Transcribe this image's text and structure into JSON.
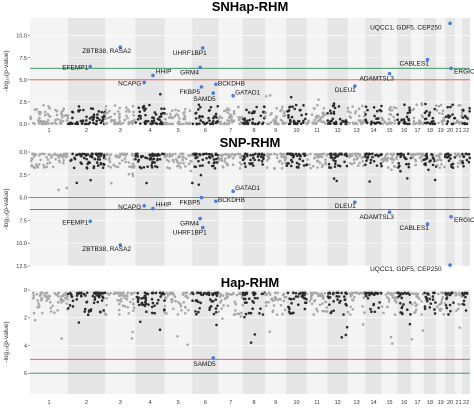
{
  "chart_data": [
    {
      "type": "scatter",
      "title": "SNHap-RHM",
      "ylabel": "-log₁₀(p-value)",
      "direction": "up",
      "ylim": [
        0,
        12
      ],
      "yticks": [
        {
          "v": 0,
          "label": "0.0"
        },
        {
          "v": 2.5,
          "label": "2.5"
        },
        {
          "v": 5,
          "label": "5.0"
        },
        {
          "v": 7.5,
          "label": "7.5"
        },
        {
          "v": 10,
          "label": "10.0"
        }
      ],
      "chromosomes": [
        "1",
        "2",
        "3",
        "4",
        "5",
        "6",
        "7",
        "8",
        "9",
        "10",
        "11",
        "12",
        "13",
        "14",
        "15",
        "16",
        "17",
        "18",
        "19",
        "20",
        "21",
        "22"
      ],
      "background_points": "dense points for each chromosome, mostly below 2",
      "thresholds": [
        {
          "v": 6.3,
          "color": "#2e8b57"
        },
        {
          "v": 5.0,
          "color": "#d9534f"
        }
      ],
      "genes": [
        {
          "name": "EFEMP1",
          "chrom": 2,
          "pos": 0.6,
          "y": 6.5
        },
        {
          "name": "ZBTB38, RASA2",
          "chrom": 3,
          "pos": 0.5,
          "y": 8.7
        },
        {
          "name": "NCAPG",
          "chrom": 4,
          "pos": 0.3,
          "y": 4.7
        },
        {
          "name": "HHIP",
          "chrom": 4,
          "pos": 0.6,
          "y": 5.5
        },
        {
          "name": "UHRF1BP1",
          "chrom": 6,
          "pos": 0.4,
          "y": 8.6
        },
        {
          "name": "GRM4",
          "chrom": 6,
          "pos": 0.3,
          "y": 6.4
        },
        {
          "name": "FKBP5",
          "chrom": 6,
          "pos": 0.35,
          "y": 4.2
        },
        {
          "name": "SAMD5",
          "chrom": 6,
          "pos": 0.8,
          "y": 3.5
        },
        {
          "name": "BCKDHB",
          "chrom": 6,
          "pos": 0.9,
          "y": 4.5
        },
        {
          "name": "GATAD1",
          "chrom": 7,
          "pos": 0.6,
          "y": 3.2
        },
        {
          "name": "DLEU1",
          "chrom": 13,
          "pos": 0.4,
          "y": 4.3
        },
        {
          "name": "ADAMTSL3",
          "chrom": 15,
          "pos": 0.5,
          "y": 5.7
        },
        {
          "name": "CABLES1",
          "chrom": 18,
          "pos": 0.3,
          "y": 7.3
        },
        {
          "name": "ERGIC3",
          "chrom": 20,
          "pos": 0.6,
          "y": 6.3
        },
        {
          "name": "UQCC1, GDF5, CEP250",
          "chrom": 20,
          "pos": 0.5,
          "y": 11.4
        }
      ]
    },
    {
      "type": "scatter",
      "title": "SNP-RHM",
      "ylabel": "-log₁₀(p-value)",
      "direction": "down",
      "ylim": [
        0,
        12.5
      ],
      "yticks": [
        {
          "v": 0,
          "label": "0.0"
        },
        {
          "v": 2.5,
          "label": "2.5"
        },
        {
          "v": 5,
          "label": "5.0"
        },
        {
          "v": 7.5,
          "label": "7.5"
        },
        {
          "v": 10,
          "label": "10.0"
        },
        {
          "v": 12.5,
          "label": "12.5"
        }
      ],
      "background_points": "dense points for each chromosome, mostly above 2",
      "thresholds": [
        {
          "v": 5.0,
          "color": "#d9534f"
        },
        {
          "v": 6.3,
          "color": "#2e8b57"
        }
      ],
      "genes": [
        {
          "name": "EFEMP1",
          "chrom": 2,
          "pos": 0.6,
          "y": 7.6
        },
        {
          "name": "ZBTB38, RASA2",
          "chrom": 3,
          "pos": 0.5,
          "y": 10.2
        },
        {
          "name": "NCAPG",
          "chrom": 4,
          "pos": 0.3,
          "y": 5.9
        },
        {
          "name": "HHIP",
          "chrom": 4,
          "pos": 0.6,
          "y": 6.2
        },
        {
          "name": "GRM4",
          "chrom": 6,
          "pos": 0.3,
          "y": 7.3
        },
        {
          "name": "UHRF1BP1",
          "chrom": 6,
          "pos": 0.4,
          "y": 8.3
        },
        {
          "name": "FKBP5",
          "chrom": 6,
          "pos": 0.35,
          "y": 5.0
        },
        {
          "name": "BCKDHB",
          "chrom": 6,
          "pos": 0.9,
          "y": 5.4
        },
        {
          "name": "GATAD1",
          "chrom": 7,
          "pos": 0.6,
          "y": 4.3
        },
        {
          "name": "DLEU1",
          "chrom": 13,
          "pos": 0.4,
          "y": 5.5
        },
        {
          "name": "ADAMTSL3",
          "chrom": 15,
          "pos": 0.5,
          "y": 6.6
        },
        {
          "name": "CABLES1",
          "chrom": 18,
          "pos": 0.3,
          "y": 7.9
        },
        {
          "name": "ERGIC3",
          "chrom": 20,
          "pos": 0.6,
          "y": 7.1
        },
        {
          "name": "UQCC1, GDF5, CEP250",
          "chrom": 20,
          "pos": 0.5,
          "y": 12.4
        }
      ]
    },
    {
      "type": "scatter",
      "title": "Hap-RHM",
      "ylabel": "-log₁₀(p-value)",
      "direction": "down",
      "ylim": [
        0,
        7.5
      ],
      "yticks": [
        {
          "v": 0,
          "label": "0"
        },
        {
          "v": 2,
          "label": "2"
        },
        {
          "v": 4,
          "label": "4"
        },
        {
          "v": 6,
          "label": "6"
        }
      ],
      "background_points": "dense points for each chromosome, mostly above 2",
      "thresholds": [
        {
          "v": 5.0,
          "color": "#d9534f"
        },
        {
          "v": 6.0,
          "color": "#2e8b57"
        }
      ],
      "genes": [
        {
          "name": "SAMD5",
          "chrom": 6,
          "pos": 0.8,
          "y": 4.9
        }
      ]
    }
  ]
}
